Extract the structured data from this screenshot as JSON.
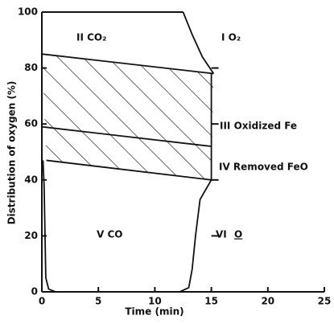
{
  "chart_data": {
    "type": "region-diagram",
    "xlabel": "Time (min)",
    "ylabel": "Distribution of oxygen (%)",
    "xlim": [
      0,
      25
    ],
    "xticks": [
      0,
      5,
      10,
      15,
      20,
      25
    ],
    "ylim": [
      0,
      100
    ],
    "yticks": [
      0,
      20,
      40,
      60,
      80,
      100
    ],
    "right_ticks": [
      20,
      40,
      60,
      80
    ],
    "color": "#111111",
    "boundaries": [
      {
        "x": [
          0,
          15.2
        ],
        "y": [
          85,
          78
        ]
      },
      {
        "x": [
          0,
          15
        ],
        "y": [
          59,
          52
        ]
      },
      {
        "x": [
          0.4,
          15
        ],
        "y": [
          47,
          40
        ]
      },
      {
        "x": [
          12.5,
          13.3,
          14.2,
          15.2
        ],
        "y": [
          100,
          92,
          84,
          78
        ]
      },
      {
        "x": [
          15,
          15
        ],
        "y": [
          78,
          40
        ]
      },
      {
        "x": [
          15,
          14,
          13.6,
          13.3,
          13,
          12.2
        ],
        "y": [
          40,
          33,
          20,
          8,
          1.5,
          0
        ]
      },
      {
        "x": [
          0.1,
          0.2,
          0.35,
          0.6,
          1.2
        ],
        "y": [
          47,
          38,
          5,
          1,
          0
        ]
      }
    ],
    "regions": [
      "II CO₂",
      "I O₂",
      "III Oxidized Fe",
      "IV Removed FeO",
      "V CO",
      "VI",
      "O"
    ]
  }
}
